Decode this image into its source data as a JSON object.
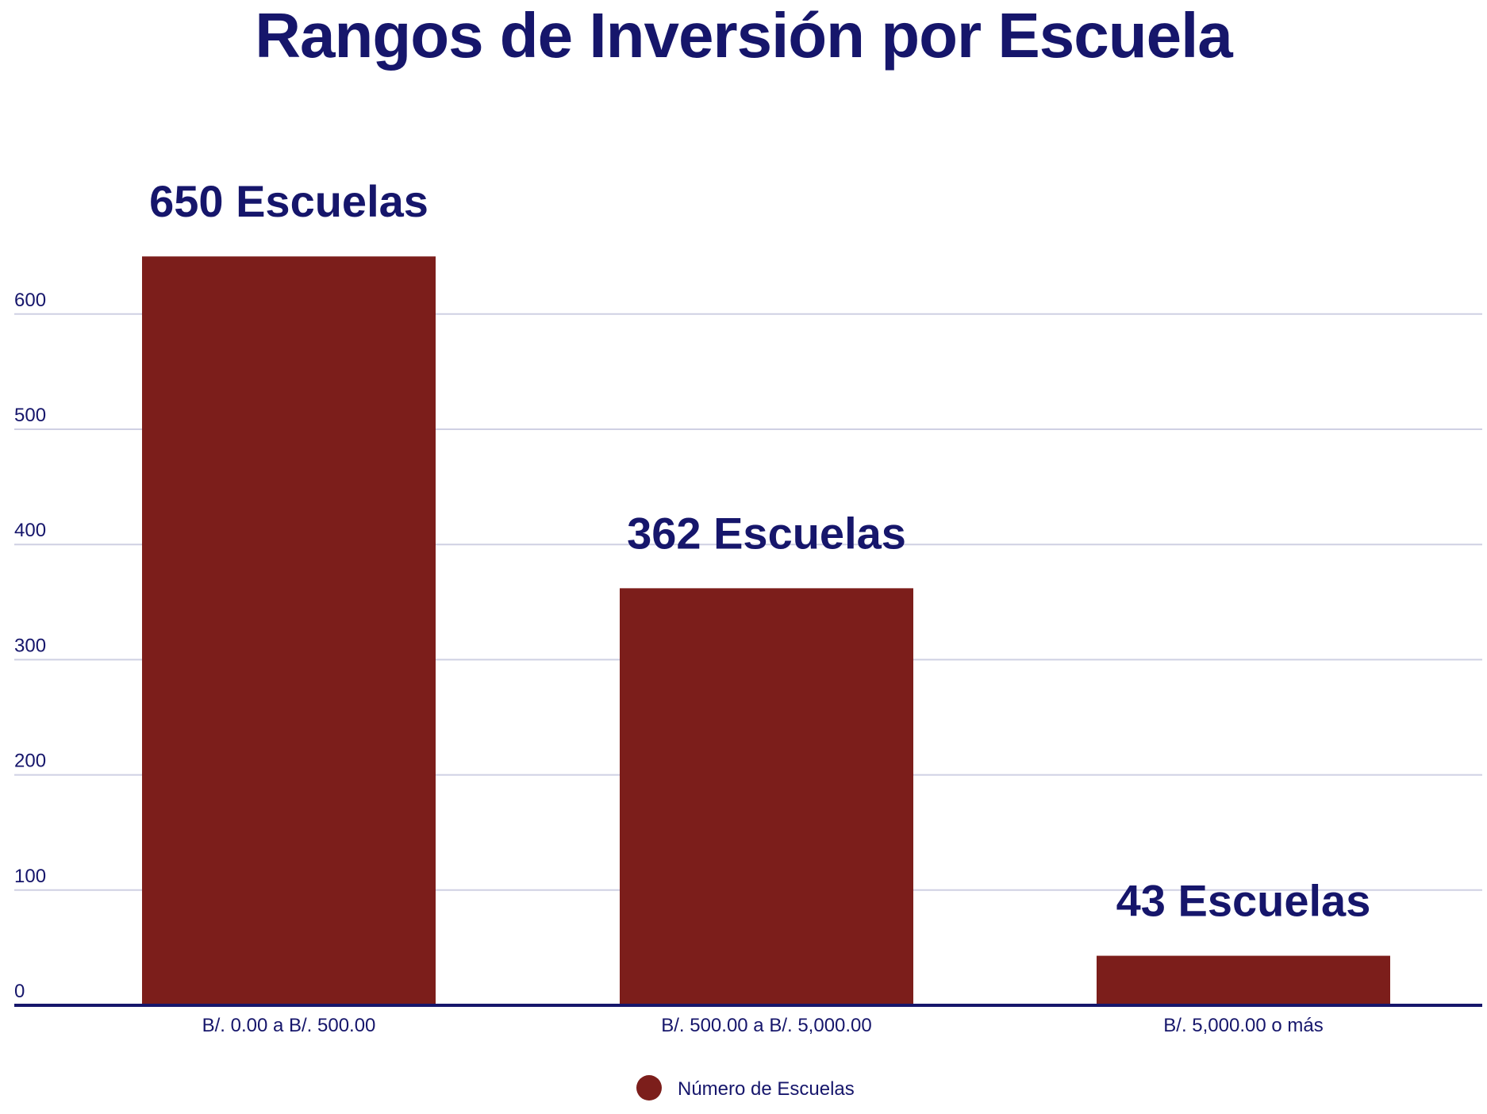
{
  "chart_data": {
    "type": "bar",
    "title": "Rangos de Inversión por Escuela",
    "categories": [
      "B/. 0.00 a B/. 500.00",
      "B/. 500.00 a B/. 5,000.00",
      "B/. 5,000.00 o más"
    ],
    "series": [
      {
        "name": "Número de Escuelas",
        "values": [
          650,
          362,
          43
        ],
        "color": "#7c1e1b"
      }
    ],
    "data_labels": [
      "650 Escuelas",
      "362 Escuelas",
      "43 Escuelas"
    ],
    "y_ticks": [
      "0",
      "100",
      "200",
      "300",
      "400",
      "500",
      "600"
    ],
    "ylim": [
      0,
      650
    ],
    "xlabel": "",
    "ylabel": "",
    "grid": true,
    "legend_position": "bottom",
    "colors": {
      "title": "#16166b",
      "text": "#16166b",
      "grid": "#cfd0e3",
      "axis": "#16166b",
      "bar": "#7c1e1b"
    }
  }
}
